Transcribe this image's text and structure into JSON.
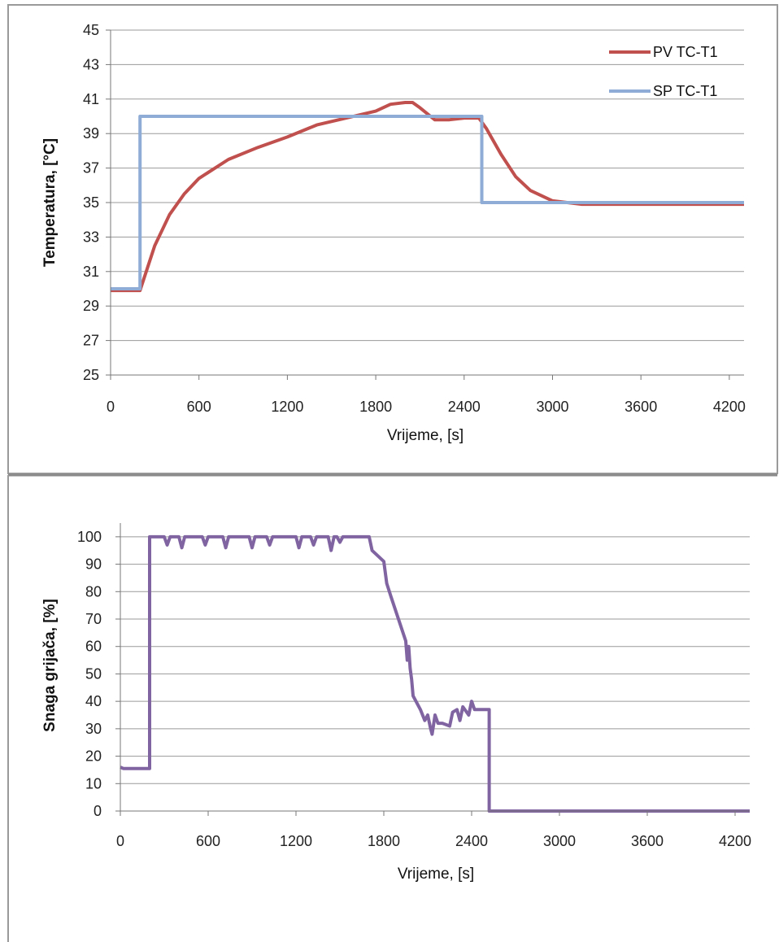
{
  "chart_data": [
    {
      "type": "line",
      "xlabel": "Vrijeme, [s]",
      "ylabel": "Temperatura, [°C]",
      "xlim": [
        0,
        4300
      ],
      "ylim": [
        25,
        45
      ],
      "xticks": [
        0,
        600,
        1200,
        1800,
        2400,
        3000,
        3600,
        4200
      ],
      "yticks": [
        25,
        27,
        29,
        31,
        33,
        35,
        37,
        39,
        41,
        43,
        45
      ],
      "grid": true,
      "legend": "top-right",
      "series": [
        {
          "name": "PV TC-T1",
          "color": "#c0504d",
          "x": [
            0,
            200,
            300,
            400,
            500,
            600,
            800,
            1000,
            1200,
            1400,
            1600,
            1800,
            1900,
            2000,
            2050,
            2100,
            2200,
            2300,
            2400,
            2500,
            2550,
            2650,
            2750,
            2850,
            3000,
            3200,
            4300
          ],
          "y": [
            29.9,
            29.9,
            32.5,
            34.3,
            35.5,
            36.4,
            37.5,
            38.2,
            38.8,
            39.5,
            39.9,
            40.3,
            40.7,
            40.8,
            40.8,
            40.5,
            39.8,
            39.8,
            39.9,
            39.9,
            39.3,
            37.8,
            36.5,
            35.7,
            35.1,
            34.9,
            34.9
          ]
        },
        {
          "name": "SP TC-T1",
          "color": "#8eacd5",
          "x": [
            0,
            200,
            200,
            2520,
            2520,
            4300
          ],
          "y": [
            30,
            30,
            40,
            40,
            35,
            35
          ]
        }
      ]
    },
    {
      "type": "line",
      "xlabel": "Vrijeme, [s]",
      "ylabel": "Snaga grijača, [%]",
      "xlim": [
        0,
        4300
      ],
      "ylim": [
        0,
        105
      ],
      "xticks": [
        0,
        600,
        1200,
        1800,
        2400,
        3000,
        3600,
        4200
      ],
      "yticks": [
        0,
        10,
        20,
        30,
        40,
        50,
        60,
        70,
        80,
        90,
        100
      ],
      "grid": true,
      "series": [
        {
          "color": "#8064a2",
          "x": [
            0,
            20,
            200,
            200,
            300,
            320,
            340,
            400,
            420,
            440,
            560,
            580,
            600,
            700,
            720,
            740,
            880,
            900,
            920,
            1000,
            1020,
            1040,
            1200,
            1220,
            1240,
            1300,
            1320,
            1340,
            1420,
            1440,
            1460,
            1480,
            1500,
            1520,
            1600,
            1700,
            1720,
            1800,
            1820,
            1850,
            1900,
            1950,
            1960,
            1970,
            1980,
            1990,
            2000,
            2050,
            2080,
            2100,
            2120,
            2130,
            2150,
            2170,
            2200,
            2250,
            2270,
            2300,
            2320,
            2340,
            2380,
            2400,
            2420,
            2500,
            2520,
            2520,
            4300
          ],
          "y": [
            16,
            15.5,
            15.5,
            100,
            100,
            97,
            100,
            100,
            96,
            100,
            100,
            97,
            100,
            100,
            96,
            100,
            100,
            96,
            100,
            100,
            97,
            100,
            100,
            96,
            100,
            100,
            97,
            100,
            100,
            95,
            100,
            100,
            98,
            100,
            100,
            100,
            95,
            91,
            83,
            78,
            70,
            62,
            55,
            60,
            52,
            48,
            42,
            37,
            33,
            35,
            30,
            28,
            35,
            32,
            32,
            31,
            36,
            37,
            33,
            38,
            35,
            40,
            37,
            37,
            37,
            0,
            0
          ]
        }
      ]
    }
  ]
}
